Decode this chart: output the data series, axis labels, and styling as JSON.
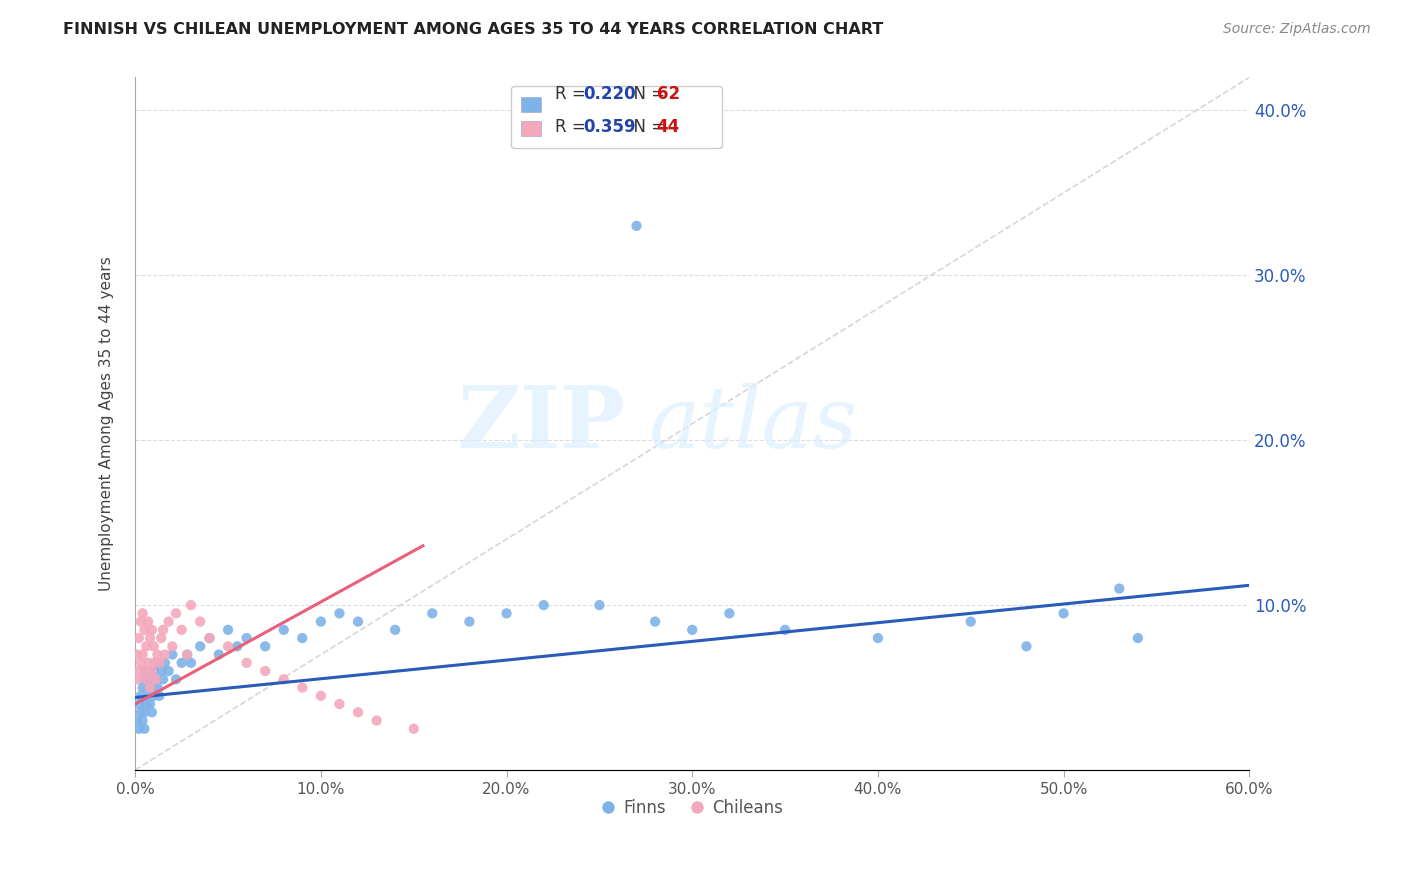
{
  "title": "FINNISH VS CHILEAN UNEMPLOYMENT AMONG AGES 35 TO 44 YEARS CORRELATION CHART",
  "source": "Source: ZipAtlas.com",
  "ylabel": "Unemployment Among Ages 35 to 44 years",
  "xlim": [
    0.0,
    0.6
  ],
  "ylim": [
    0.0,
    0.42
  ],
  "xtick_vals": [
    0.0,
    0.1,
    0.2,
    0.3,
    0.4,
    0.5,
    0.6
  ],
  "ytick_vals": [
    0.0,
    0.1,
    0.2,
    0.3,
    0.4
  ],
  "ytick_labels": [
    "",
    "10.0%",
    "20.0%",
    "30.0%",
    "40.0%"
  ],
  "xtick_labels": [
    "0.0%",
    "10.0%",
    "20.0%",
    "30.0%",
    "40.0%",
    "50.0%",
    "60.0%"
  ],
  "legend_finn": "Finns",
  "legend_chile": "Chileans",
  "finn_R": "0.220",
  "finn_N": "62",
  "chile_R": "0.359",
  "chile_N": "44",
  "finn_color": "#7EB3E8",
  "chile_color": "#F4A8BC",
  "finn_line_color": "#2B5BB8",
  "chile_line_color": "#E8607A",
  "diag_color": "#CCCCCC",
  "watermark": "ZIPatlas",
  "background_color": "#FFFFFF",
  "legend_text_color": "#2244AA",
  "legend_N_color": "#CC2222",
  "finn_x": [
    0.001,
    0.002,
    0.002,
    0.003,
    0.003,
    0.004,
    0.004,
    0.005,
    0.005,
    0.005,
    0.006,
    0.006,
    0.007,
    0.007,
    0.008,
    0.008,
    0.009,
    0.009,
    0.01,
    0.01,
    0.011,
    0.012,
    0.012,
    0.013,
    0.014,
    0.015,
    0.016,
    0.018,
    0.02,
    0.022,
    0.025,
    0.028,
    0.03,
    0.035,
    0.04,
    0.045,
    0.05,
    0.055,
    0.06,
    0.07,
    0.08,
    0.09,
    0.1,
    0.11,
    0.12,
    0.14,
    0.16,
    0.18,
    0.2,
    0.22,
    0.25,
    0.28,
    0.3,
    0.32,
    0.35,
    0.4,
    0.45,
    0.5,
    0.54,
    0.27,
    0.48,
    0.53
  ],
  "finn_y": [
    0.03,
    0.025,
    0.04,
    0.035,
    0.045,
    0.03,
    0.05,
    0.025,
    0.035,
    0.055,
    0.04,
    0.06,
    0.045,
    0.055,
    0.04,
    0.06,
    0.035,
    0.05,
    0.045,
    0.06,
    0.055,
    0.05,
    0.065,
    0.045,
    0.06,
    0.055,
    0.065,
    0.06,
    0.07,
    0.055,
    0.065,
    0.07,
    0.065,
    0.075,
    0.08,
    0.07,
    0.085,
    0.075,
    0.08,
    0.075,
    0.085,
    0.08,
    0.09,
    0.095,
    0.09,
    0.085,
    0.095,
    0.09,
    0.095,
    0.1,
    0.1,
    0.09,
    0.085,
    0.095,
    0.085,
    0.08,
    0.09,
    0.095,
    0.08,
    0.33,
    0.075,
    0.11
  ],
  "chile_x": [
    0.001,
    0.001,
    0.002,
    0.002,
    0.003,
    0.003,
    0.004,
    0.004,
    0.005,
    0.005,
    0.006,
    0.006,
    0.007,
    0.007,
    0.008,
    0.008,
    0.009,
    0.009,
    0.01,
    0.01,
    0.011,
    0.012,
    0.013,
    0.014,
    0.015,
    0.016,
    0.018,
    0.02,
    0.022,
    0.025,
    0.028,
    0.03,
    0.035,
    0.04,
    0.05,
    0.06,
    0.07,
    0.08,
    0.09,
    0.1,
    0.11,
    0.12,
    0.13,
    0.15
  ],
  "chile_y": [
    0.055,
    0.07,
    0.06,
    0.08,
    0.065,
    0.09,
    0.07,
    0.095,
    0.06,
    0.085,
    0.055,
    0.075,
    0.065,
    0.09,
    0.05,
    0.08,
    0.06,
    0.085,
    0.065,
    0.075,
    0.055,
    0.07,
    0.065,
    0.08,
    0.085,
    0.07,
    0.09,
    0.075,
    0.095,
    0.085,
    0.07,
    0.1,
    0.09,
    0.08,
    0.075,
    0.065,
    0.06,
    0.055,
    0.05,
    0.045,
    0.04,
    0.035,
    0.03,
    0.025
  ]
}
